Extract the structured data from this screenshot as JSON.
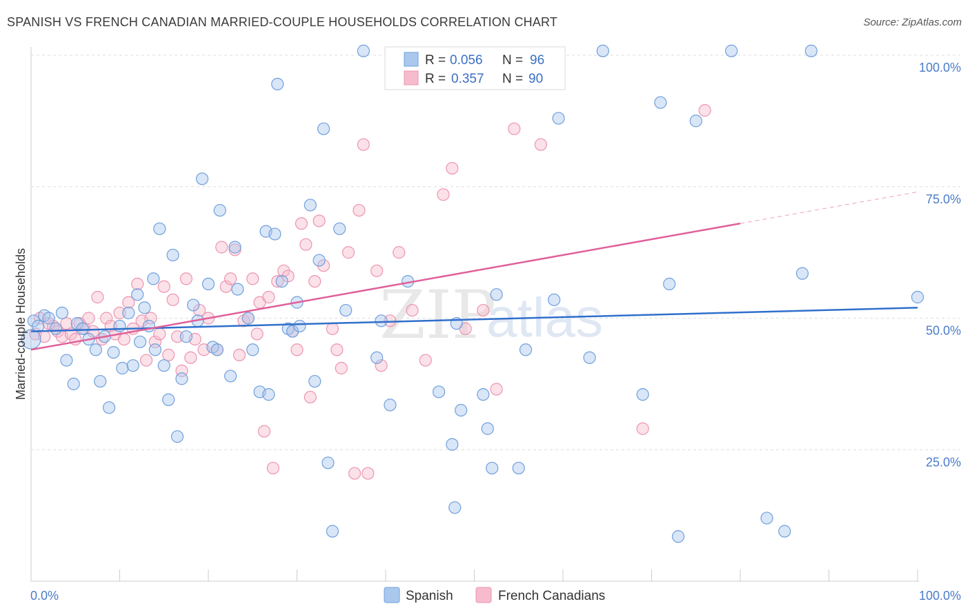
{
  "header": {
    "title": "SPANISH VS FRENCH CANADIAN MARRIED-COUPLE HOUSEHOLDS CORRELATION CHART",
    "source": "Source: ZipAtlas.com"
  },
  "colors": {
    "spanish_fill": "#aac8ee",
    "spanish_stroke": "#6f9fdc",
    "spanish_line": "#2f6fcc",
    "french_fill": "#f6bccd",
    "french_stroke": "#ec94b1",
    "french_line": "#e0609a",
    "tick_text": "#4a7cc9",
    "grid": "#dcdcdc"
  },
  "legend": {
    "rows": [
      {
        "r_label": "R = ",
        "r_value": "0.056",
        "n_label": "N = ",
        "n_value": "96"
      },
      {
        "r_label": "R = ",
        "r_value": "0.357",
        "n_label": "N = ",
        "n_value": "90"
      }
    ]
  },
  "watermark": {
    "zip": "ZIP",
    "atlas": "atlas"
  },
  "chart_data": {
    "type": "scatter",
    "title": "SPANISH VS FRENCH CANADIAN MARRIED-COUPLE HOUSEHOLDS CORRELATION CHART",
    "xlabel": "",
    "ylabel": "Married-couple Households",
    "xlim": [
      0,
      100
    ],
    "ylim": [
      0,
      102
    ],
    "x_tick_labels": [
      "0.0%",
      "100.0%"
    ],
    "y_tick_labels": [
      "25.0%",
      "50.0%",
      "75.0%",
      "100.0%"
    ],
    "y_ticks": [
      25,
      50,
      75,
      100
    ],
    "grid": true,
    "legend_position": "top-center",
    "series": [
      {
        "name": "Spanish",
        "r": 0.056,
        "n": 96,
        "trend": {
          "x": [
            0,
            100
          ],
          "y": [
            47.5,
            52.0
          ]
        },
        "points": [
          [
            0.0,
            46.0
          ],
          [
            0.3,
            49.5
          ],
          [
            0.8,
            48.5
          ],
          [
            1.5,
            50.5
          ],
          [
            2.0,
            50.0
          ],
          [
            2.8,
            48.0
          ],
          [
            3.5,
            51.0
          ],
          [
            4.0,
            42.0
          ],
          [
            4.8,
            37.5
          ],
          [
            5.2,
            49.0
          ],
          [
            5.8,
            48.0
          ],
          [
            6.5,
            46.0
          ],
          [
            7.3,
            44.0
          ],
          [
            7.8,
            38.0
          ],
          [
            8.3,
            46.5
          ],
          [
            8.8,
            33.0
          ],
          [
            9.3,
            43.5
          ],
          [
            10.0,
            48.5
          ],
          [
            10.3,
            40.5
          ],
          [
            11.0,
            51.0
          ],
          [
            11.5,
            41.0
          ],
          [
            12.0,
            54.5
          ],
          [
            12.3,
            45.5
          ],
          [
            12.8,
            52.0
          ],
          [
            13.3,
            48.5
          ],
          [
            13.8,
            57.5
          ],
          [
            14.0,
            44.0
          ],
          [
            14.5,
            67.0
          ],
          [
            15.0,
            41.0
          ],
          [
            15.5,
            34.5
          ],
          [
            16.0,
            62.0
          ],
          [
            16.5,
            27.5
          ],
          [
            17.0,
            38.5
          ],
          [
            17.5,
            46.5
          ],
          [
            18.3,
            52.5
          ],
          [
            18.8,
            49.5
          ],
          [
            19.3,
            76.5
          ],
          [
            20.0,
            56.5
          ],
          [
            20.5,
            44.5
          ],
          [
            21.0,
            44.0
          ],
          [
            21.3,
            70.5
          ],
          [
            22.5,
            39.0
          ],
          [
            23.0,
            63.5
          ],
          [
            23.3,
            55.5
          ],
          [
            24.5,
            50.0
          ],
          [
            25.0,
            44.0
          ],
          [
            25.8,
            36.0
          ],
          [
            26.5,
            66.5
          ],
          [
            26.8,
            35.5
          ],
          [
            27.5,
            66.0
          ],
          [
            27.8,
            94.5
          ],
          [
            28.3,
            57.0
          ],
          [
            29.0,
            48.0
          ],
          [
            29.5,
            47.5
          ],
          [
            30.0,
            53.0
          ],
          [
            30.3,
            48.5
          ],
          [
            31.5,
            71.5
          ],
          [
            32.0,
            38.0
          ],
          [
            32.5,
            61.0
          ],
          [
            33.0,
            86.0
          ],
          [
            33.5,
            22.5
          ],
          [
            34.0,
            9.5
          ],
          [
            34.8,
            67.0
          ],
          [
            35.5,
            51.5
          ],
          [
            37.5,
            100.8
          ],
          [
            39.0,
            42.5
          ],
          [
            39.5,
            49.5
          ],
          [
            40.5,
            33.5
          ],
          [
            42.5,
            57.0
          ],
          [
            46.0,
            36.0
          ],
          [
            47.5,
            26.0
          ],
          [
            47.8,
            14.0
          ],
          [
            48.0,
            49.0
          ],
          [
            48.5,
            32.5
          ],
          [
            51.0,
            35.5
          ],
          [
            51.5,
            29.0
          ],
          [
            52.0,
            21.5
          ],
          [
            52.5,
            54.5
          ],
          [
            55.0,
            21.5
          ],
          [
            55.8,
            44.0
          ],
          [
            59.0,
            53.5
          ],
          [
            59.5,
            88.0
          ],
          [
            63.0,
            42.5
          ],
          [
            64.5,
            100.8
          ],
          [
            69.0,
            35.5
          ],
          [
            71.0,
            91.0
          ],
          [
            72.0,
            56.5
          ],
          [
            73.0,
            8.5
          ],
          [
            75.0,
            87.5
          ],
          [
            79.0,
            100.8
          ],
          [
            83.0,
            12.0
          ],
          [
            85.0,
            9.5
          ],
          [
            87.0,
            58.5
          ],
          [
            88.0,
            100.8
          ],
          [
            100.0,
            54.0
          ]
        ]
      },
      {
        "name": "French Canadians",
        "r": 0.357,
        "n": 90,
        "trend": {
          "x": [
            0,
            80
          ],
          "y": [
            44.0,
            68.0
          ]
        },
        "trend_dashed": {
          "x": [
            80,
            100
          ],
          "y": [
            68.0,
            74.0
          ]
        },
        "points": [
          [
            0.5,
            47.0
          ],
          [
            1.0,
            50.0
          ],
          [
            1.5,
            46.5
          ],
          [
            2.0,
            49.0
          ],
          [
            2.5,
            48.5
          ],
          [
            3.0,
            47.5
          ],
          [
            3.5,
            46.5
          ],
          [
            4.0,
            49.0
          ],
          [
            4.5,
            47.0
          ],
          [
            5.0,
            46.0
          ],
          [
            5.5,
            49.0
          ],
          [
            6.0,
            48.0
          ],
          [
            6.5,
            50.0
          ],
          [
            7.0,
            47.5
          ],
          [
            7.5,
            54.0
          ],
          [
            8.0,
            46.0
          ],
          [
            8.5,
            50.0
          ],
          [
            9.0,
            48.5
          ],
          [
            9.5,
            47.0
          ],
          [
            10.0,
            51.0
          ],
          [
            10.5,
            46.0
          ],
          [
            11.0,
            53.0
          ],
          [
            11.5,
            48.0
          ],
          [
            12.0,
            56.5
          ],
          [
            12.5,
            49.5
          ],
          [
            13.0,
            42.0
          ],
          [
            13.5,
            50.0
          ],
          [
            14.0,
            45.5
          ],
          [
            14.5,
            47.0
          ],
          [
            15.0,
            56.0
          ],
          [
            15.5,
            43.0
          ],
          [
            16.0,
            53.5
          ],
          [
            16.5,
            46.5
          ],
          [
            17.0,
            40.0
          ],
          [
            17.5,
            57.5
          ],
          [
            18.0,
            42.5
          ],
          [
            18.5,
            46.0
          ],
          [
            19.0,
            51.5
          ],
          [
            19.5,
            44.0
          ],
          [
            20.0,
            50.0
          ],
          [
            21.0,
            44.0
          ],
          [
            21.5,
            63.5
          ],
          [
            22.0,
            56.0
          ],
          [
            22.5,
            57.5
          ],
          [
            23.0,
            63.0
          ],
          [
            23.5,
            43.0
          ],
          [
            24.0,
            49.5
          ],
          [
            24.5,
            50.0
          ],
          [
            25.0,
            57.5
          ],
          [
            25.5,
            47.0
          ],
          [
            25.8,
            53.0
          ],
          [
            26.3,
            28.5
          ],
          [
            26.8,
            54.0
          ],
          [
            27.3,
            21.5
          ],
          [
            27.8,
            57.0
          ],
          [
            28.5,
            59.0
          ],
          [
            29.0,
            58.0
          ],
          [
            29.5,
            47.5
          ],
          [
            30.0,
            44.0
          ],
          [
            30.5,
            68.0
          ],
          [
            31.0,
            64.0
          ],
          [
            31.5,
            35.0
          ],
          [
            32.0,
            57.0
          ],
          [
            32.5,
            68.5
          ],
          [
            33.0,
            60.0
          ],
          [
            34.0,
            48.0
          ],
          [
            34.5,
            44.0
          ],
          [
            35.0,
            40.5
          ],
          [
            35.8,
            62.5
          ],
          [
            36.5,
            20.5
          ],
          [
            37.0,
            70.5
          ],
          [
            37.5,
            83.0
          ],
          [
            38.0,
            20.5
          ],
          [
            39.0,
            59.0
          ],
          [
            39.5,
            41.0
          ],
          [
            40.5,
            49.5
          ],
          [
            41.5,
            62.5
          ],
          [
            43.0,
            51.5
          ],
          [
            44.5,
            42.0
          ],
          [
            46.5,
            73.5
          ],
          [
            47.5,
            78.5
          ],
          [
            49.0,
            48.0
          ],
          [
            51.0,
            51.5
          ],
          [
            52.5,
            36.5
          ],
          [
            54.5,
            86.0
          ],
          [
            57.5,
            83.0
          ],
          [
            69.0,
            29.0
          ],
          [
            76.0,
            89.5
          ]
        ]
      }
    ]
  }
}
